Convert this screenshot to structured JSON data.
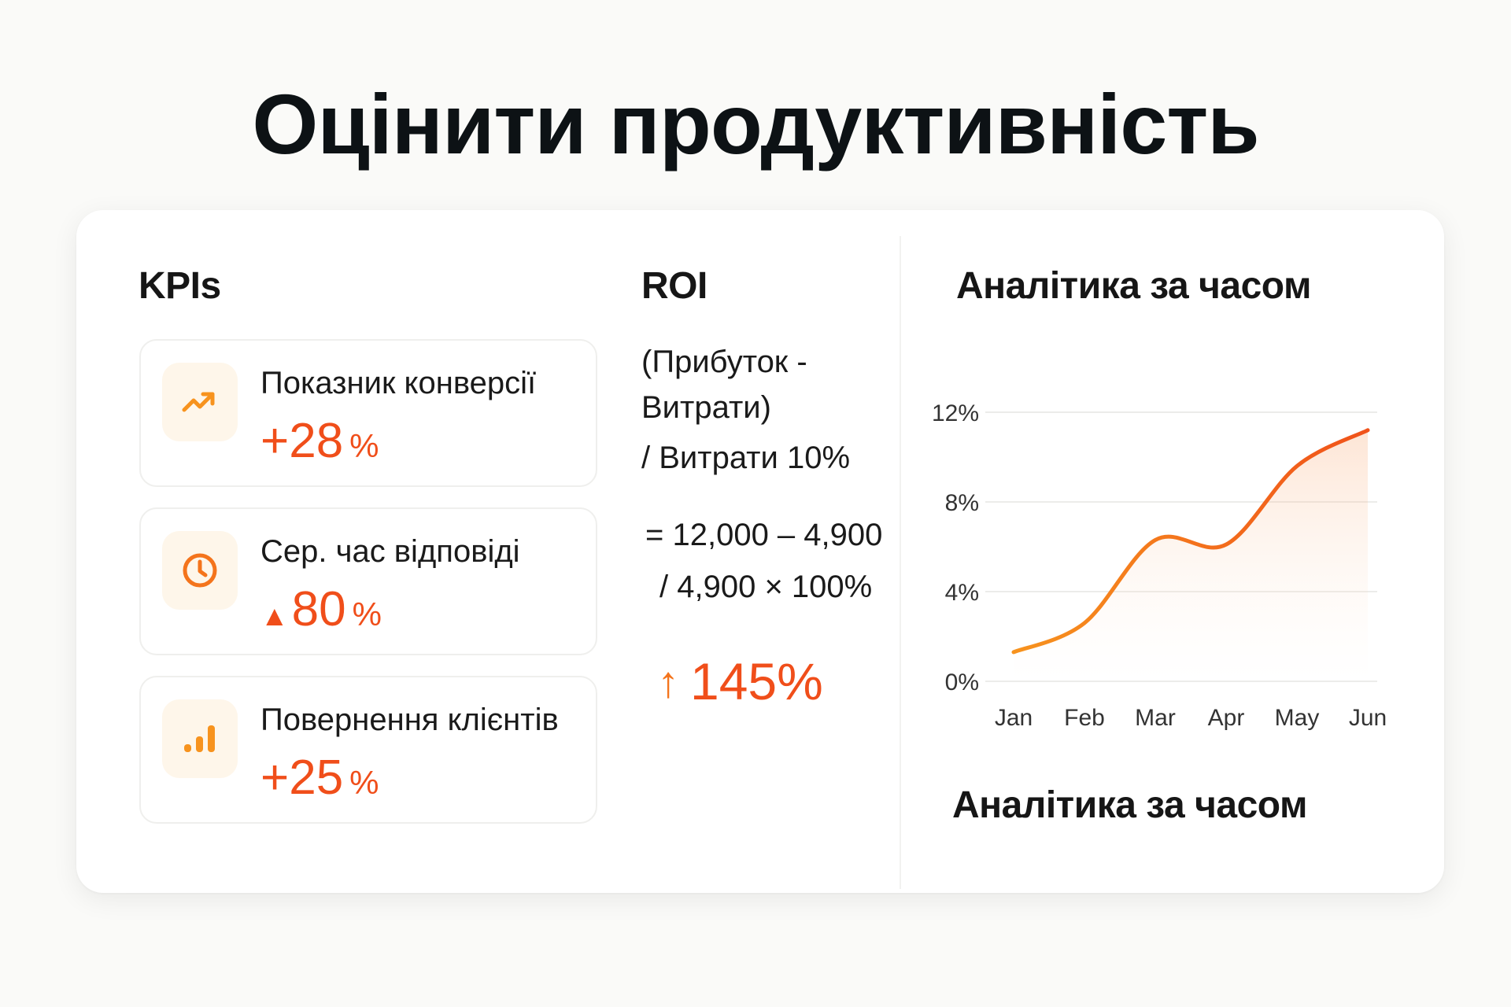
{
  "page": {
    "title": "Оцінити продуктивність"
  },
  "kpis": {
    "heading": "KPIs",
    "items": [
      {
        "label": "Показник конверсії",
        "prefix": "",
        "value": "+28",
        "unit": "%",
        "icon": "trending-up-icon"
      },
      {
        "label": "Сер. час відповіді",
        "prefix": "▲",
        "value": "80",
        "unit": "%",
        "icon": "clock-icon"
      },
      {
        "label": "Повернення клієнтів",
        "prefix": "",
        "value": "+25",
        "unit": "%",
        "icon": "bar-chart-icon"
      }
    ]
  },
  "roi": {
    "heading": "ROI",
    "formula_line1": "(Прибуток -",
    "formula_line2": "Витрати)",
    "formula_line3": "/ Витрати 10%",
    "calc_line1": "= 12,000 – 4,900",
    "calc_line2": "/ 4,900 × 100%",
    "result_arrow": "↑",
    "result": "145%"
  },
  "analytics": {
    "heading": "Аналітика за часом",
    "footer": "Аналітика за часом"
  },
  "colors": {
    "accent": "#f04e1a",
    "accent_light": "#f7931e",
    "icon_bg": "#fef6ea"
  },
  "chart_data": {
    "type": "area",
    "categories": [
      "Jan",
      "Feb",
      "Mar",
      "Apr",
      "May",
      "Jun"
    ],
    "series": [
      {
        "values": [
          1.3,
          2.6,
          6.3,
          6.1,
          9.6,
          11.2
        ]
      }
    ],
    "y_ticks": [
      "0%",
      "4%",
      "8%",
      "12%"
    ],
    "ylim": [
      0,
      12
    ],
    "grid": true
  }
}
